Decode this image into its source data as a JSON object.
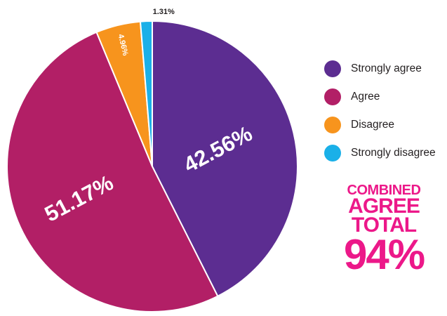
{
  "chart_data": {
    "type": "pie",
    "title": "",
    "slices": [
      {
        "label": "Strongly agree",
        "value": 42.56,
        "display": "42.56%",
        "color": "#5c2d91"
      },
      {
        "label": "Agree",
        "value": 51.17,
        "display": "51.17%",
        "color": "#b21f66"
      },
      {
        "label": "Disagree",
        "value": 4.96,
        "display": "4.96%",
        "color": "#f7941d"
      },
      {
        "label": "Strongly disagree",
        "value": 1.31,
        "display": "1.31%",
        "color": "#1ab0e8"
      }
    ],
    "legend_position": "right"
  },
  "callout": {
    "line1": "COMBINED",
    "line2": "AGREE",
    "line3": "TOTAL",
    "value": "94%",
    "color": "#ec1889"
  }
}
